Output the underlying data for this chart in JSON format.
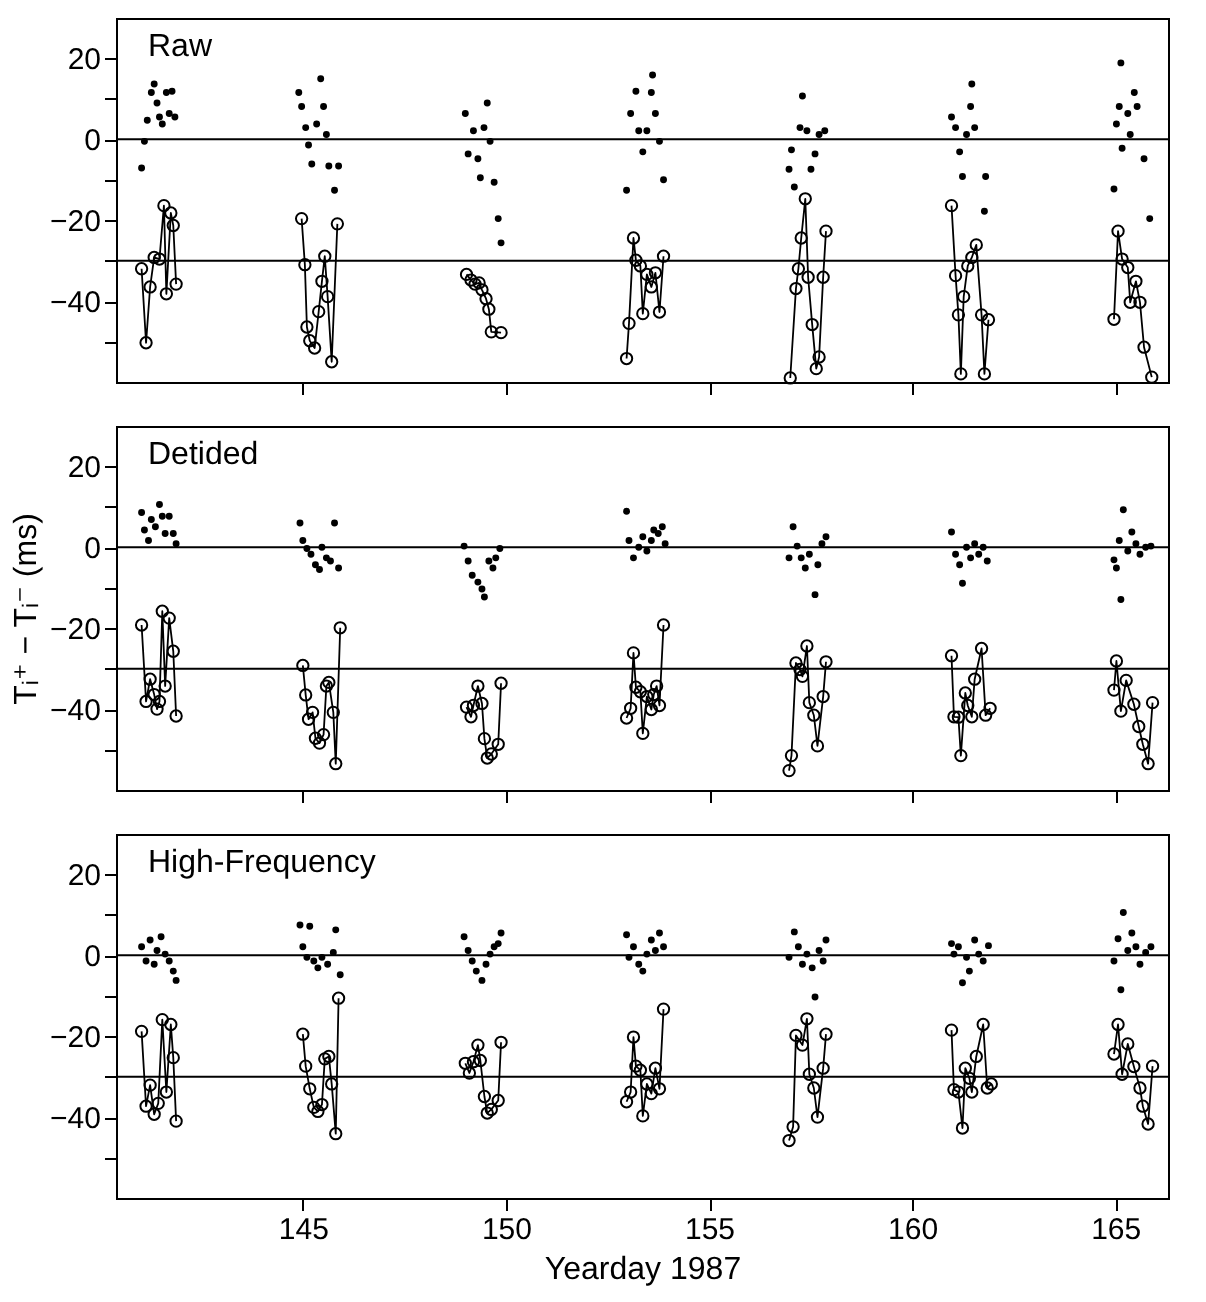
{
  "chart_data": [
    {
      "type": "scatter",
      "title": "Raw",
      "xlim": [
        140.4,
        166.3
      ],
      "ylim": [
        -60,
        30
      ],
      "xticks": [
        145,
        150,
        155,
        160,
        165
      ],
      "yticks": [
        {
          "value": -50,
          "label": null
        },
        -40,
        {
          "value": -30,
          "label": null
        },
        -20,
        {
          "value": -10,
          "label": null
        },
        0,
        {
          "value": 10,
          "label": null
        },
        20
      ],
      "tick_labels": "y",
      "ref_lines": [
        {
          "axis": "y",
          "value": 0
        },
        {
          "axis": "y",
          "value": -30
        }
      ],
      "series": [
        {
          "type": "scatter",
          "color": "#000000",
          "marker": "circle",
          "x": [
            141.03,
            141.1,
            141.17,
            141.27,
            141.34,
            141.41,
            141.47,
            141.54,
            141.64,
            141.71,
            141.78,
            141.85,
            144.9,
            144.97,
            145.07,
            145.14,
            145.22,
            145.34,
            145.44,
            145.51,
            145.58,
            145.64,
            145.78,
            145.88,
            149.0,
            149.07,
            149.2,
            149.31,
            149.37,
            149.46,
            149.54,
            149.61,
            149.71,
            149.81,
            149.88,
            152.97,
            153.07,
            153.2,
            153.27,
            153.37,
            153.47,
            153.58,
            153.61,
            153.68,
            153.78,
            153.88,
            156.97,
            157.03,
            157.1,
            157.24,
            157.3,
            157.41,
            157.51,
            157.61,
            157.71,
            157.85,
            160.97,
            161.07,
            161.17,
            161.24,
            161.34,
            161.44,
            161.47,
            161.54,
            161.78,
            161.81,
            164.97,
            165.03,
            165.1,
            165.14,
            165.17,
            165.31,
            165.37,
            165.47,
            165.54,
            165.71,
            165.85
          ],
          "values": [
            -7.1,
            -0.5,
            4.7,
            11.6,
            13.7,
            9,
            5.5,
            3.8,
            11.6,
            6.4,
            11.9,
            5.5,
            11.6,
            8.1,
            2.9,
            -1.4,
            -6.1,
            3.8,
            15,
            8.1,
            1.2,
            -6.6,
            -12.6,
            -6.6,
            6.4,
            -3.6,
            2.1,
            -4.8,
            -9.5,
            2.9,
            9,
            -0.5,
            -10.6,
            -19.6,
            -25.6,
            -12.6,
            6.4,
            11.9,
            2.1,
            -3.1,
            2.1,
            11.6,
            15.9,
            6.4,
            -0.5,
            -10,
            -7.4,
            -2.6,
            -11.8,
            2.9,
            10.7,
            2.1,
            -7.4,
            -3.6,
            1.2,
            2.1,
            5.5,
            2.9,
            -3.1,
            -9.2,
            1.2,
            8.1,
            13.7,
            2.9,
            -17.8,
            -9.2,
            -12.3,
            3.8,
            8.1,
            18.9,
            -2.2,
            6.4,
            1.2,
            11.6,
            8.1,
            -4.8,
            -19.6
          ]
        },
        {
          "type": "line",
          "color": "#000000",
          "marker": "circle",
          "x": [
            141.03,
            141.14,
            141.24,
            141.34,
            141.47,
            141.58,
            141.64,
            141.75,
            141.81,
            141.88,
            143.0,
            144.97,
            145.05,
            145.1,
            145.17,
            145.29,
            145.39,
            145.47,
            145.54,
            145.61,
            145.71,
            145.85,
            147.5,
            149.03,
            149.14,
            149.24,
            149.34,
            149.41,
            149.51,
            149.58,
            149.64,
            149.88,
            151.5,
            152.97,
            153.03,
            153.14,
            153.2,
            153.31,
            153.37,
            153.47,
            153.58,
            153.68,
            153.78,
            153.88,
            155.5,
            157.0,
            157.14,
            157.2,
            157.27,
            157.37,
            157.44,
            157.54,
            157.64,
            157.71,
            157.81,
            157.88,
            159.5,
            160.97,
            161.07,
            161.14,
            161.2,
            161.27,
            161.37,
            161.47,
            161.58,
            161.71,
            161.78,
            161.88,
            163.5,
            164.97,
            165.07,
            165.17,
            165.31,
            165.37,
            165.51,
            165.61,
            165.71,
            165.9
          ],
          "values": [
            -32,
            -50.3,
            -36.5,
            -29.2,
            -29.6,
            -16.4,
            -38.2,
            -18.2,
            -21.3,
            -35.8,
            null,
            -19.6,
            -31,
            -46.4,
            -49.8,
            -51.6,
            -42.6,
            -35.1,
            -28.9,
            -38.9,
            -55,
            -20.9,
            null,
            -33.4,
            -34.8,
            -35.8,
            -35.5,
            -37.2,
            -39.4,
            -42,
            -47.6,
            -47.8,
            null,
            -54.2,
            -45.5,
            -24.4,
            -29.9,
            -31.3,
            -43.1,
            -33.4,
            -36.5,
            -33,
            -42.7,
            -28.9,
            null,
            -59,
            -36.9,
            -32,
            -24.4,
            -14.7,
            -34.1,
            -45.8,
            -56.7,
            -53.8,
            -34.1,
            -22.7,
            null,
            -16.4,
            -33.7,
            -43.4,
            -58,
            -38.9,
            -31.3,
            -29.2,
            -26.1,
            -43.4,
            -58,
            -44.6,
            null,
            -44.5,
            -22.7,
            -29.6,
            -31.7,
            -40.3,
            -35.1,
            -40.3,
            -51.4,
            -58.8
          ]
        }
      ]
    },
    {
      "type": "scatter",
      "title": "Detided",
      "ylabel": "Tᵢ⁺ − Tᵢ⁻ (ms)",
      "xlim": [
        140.4,
        166.3
      ],
      "ylim": [
        -60,
        30
      ],
      "xticks": [
        145,
        150,
        155,
        160,
        165
      ],
      "yticks": [
        {
          "value": -50,
          "label": null
        },
        -40,
        {
          "value": -30,
          "label": null
        },
        -20,
        {
          "value": -10,
          "label": null
        },
        0,
        {
          "value": 10,
          "label": null
        },
        20
      ],
      "tick_labels": "y",
      "ref_lines": [
        {
          "axis": "y",
          "value": 0
        },
        {
          "axis": "y",
          "value": -30
        }
      ],
      "series": [
        {
          "type": "scatter",
          "color": "#000000",
          "marker": "circle",
          "x": [
            141.03,
            141.1,
            141.2,
            141.27,
            141.37,
            141.47,
            141.54,
            141.61,
            141.71,
            141.81,
            141.88,
            144.93,
            145.0,
            145.1,
            145.2,
            145.31,
            145.41,
            145.47,
            145.58,
            145.68,
            145.78,
            145.88,
            148.97,
            149.07,
            149.17,
            149.31,
            149.41,
            149.47,
            149.58,
            149.68,
            149.75,
            149.85,
            152.97,
            153.03,
            153.14,
            153.27,
            153.37,
            153.47,
            153.58,
            153.64,
            153.75,
            153.85,
            153.92,
            156.97,
            157.07,
            157.17,
            157.27,
            157.37,
            157.47,
            157.61,
            157.68,
            157.78,
            157.88,
            160.97,
            161.07,
            161.17,
            161.24,
            161.34,
            161.44,
            161.54,
            161.64,
            161.75,
            161.85,
            164.97,
            165.03,
            165.1,
            165.14,
            165.2,
            165.31,
            165.41,
            165.51,
            165.61,
            165.75,
            165.88
          ],
          "values": [
            8.6,
            4.3,
            1.7,
            6.9,
            5.1,
            10.6,
            7.7,
            3.4,
            7.7,
            3.4,
            0.9,
            6,
            1.7,
            -0.3,
            -1.7,
            -4.3,
            -5.5,
            0,
            -2.6,
            -3.4,
            6,
            -5.1,
            0.3,
            -3.4,
            -6.9,
            -8.6,
            -10.3,
            -12.3,
            -3.4,
            -5.1,
            -2.6,
            -0.3,
            8.9,
            1.7,
            -2.6,
            0,
            2.6,
            -0.9,
            1.7,
            4.3,
            3.4,
            5.1,
            0.9,
            -2.6,
            5.1,
            0.3,
            -2.6,
            -5.1,
            -1.7,
            -11.7,
            -4.3,
            0.9,
            2.6,
            3.8,
            -1.7,
            -4.3,
            -8.9,
            0,
            -2.6,
            0.9,
            -1.7,
            0,
            -3.4,
            -3.1,
            -5.1,
            1.7,
            -12.9,
            9.3,
            -0.9,
            3.8,
            0.9,
            -1.7,
            0,
            0.3
          ]
        },
        {
          "type": "line",
          "color": "#000000",
          "marker": "circle",
          "x": [
            141.03,
            141.14,
            141.24,
            141.34,
            141.41,
            141.47,
            141.54,
            141.61,
            141.71,
            141.81,
            141.88,
            143.0,
            145.0,
            145.07,
            145.14,
            145.24,
            145.31,
            145.41,
            145.51,
            145.58,
            145.64,
            145.75,
            145.81,
            145.92,
            147.5,
            149.03,
            149.14,
            149.2,
            149.31,
            149.41,
            149.47,
            149.54,
            149.64,
            149.81,
            149.88,
            151.5,
            152.97,
            153.07,
            153.14,
            153.2,
            153.31,
            153.37,
            153.47,
            153.58,
            153.64,
            153.71,
            153.78,
            153.88,
            155.5,
            156.97,
            157.03,
            157.14,
            157.24,
            157.3,
            157.41,
            157.47,
            157.58,
            157.67,
            157.81,
            157.88,
            159.5,
            160.97,
            161.03,
            161.14,
            161.2,
            161.31,
            161.37,
            161.47,
            161.54,
            161.71,
            161.81,
            161.92,
            163.5,
            164.97,
            165.03,
            165.14,
            165.27,
            165.46,
            165.58,
            165.68,
            165.81,
            165.92
          ],
          "values": [
            -19.2,
            -38.1,
            -32.6,
            -36.4,
            -40,
            -38.1,
            -15.8,
            -34.3,
            -17.5,
            -25.7,
            -41.7,
            null,
            -29.2,
            -36.5,
            -42.5,
            -40.8,
            -47.2,
            -48.4,
            -46.3,
            -34.3,
            -33.4,
            -40.8,
            -53.5,
            -19.9,
            null,
            -39.5,
            -41.9,
            -39.1,
            -34.3,
            -38.6,
            -47.3,
            -52.1,
            -51.1,
            -48.7,
            -33.6,
            null,
            -42.2,
            -39.8,
            -26.1,
            -34.6,
            -35.7,
            -46,
            -36.9,
            -40.1,
            -36.4,
            -34.3,
            -39.1,
            -19.2,
            null,
            -55.2,
            -51.5,
            -28.6,
            -30.2,
            -31.9,
            -24.4,
            -38.4,
            -41.5,
            -49.1,
            -36.9,
            -28.3,
            null,
            -26.8,
            -41.9,
            -42,
            -51.5,
            -36,
            -39.1,
            -41.9,
            -32.6,
            -25,
            -41.5,
            -39.8,
            null,
            -35.3,
            -28.1,
            -40.5,
            -32.9,
            -38.8,
            -44.3,
            -48.7,
            -53.5,
            -38.4
          ]
        }
      ]
    },
    {
      "type": "scatter",
      "title": "High-Frequency",
      "xlabel": "Yearday 1987",
      "xlim": [
        140.4,
        166.3
      ],
      "ylim": [
        -60,
        30
      ],
      "xticks": [
        145,
        150,
        155,
        160,
        165
      ],
      "yticks": [
        {
          "value": -50,
          "label": null
        },
        -40,
        {
          "value": -30,
          "label": null
        },
        -20,
        {
          "value": -10,
          "label": null
        },
        0,
        {
          "value": 10,
          "label": null
        },
        20
      ],
      "ref_lines": [
        {
          "axis": "y",
          "value": 0
        },
        {
          "axis": "y",
          "value": -30
        }
      ],
      "series": [
        {
          "type": "scatter",
          "color": "#000000",
          "marker": "circle",
          "x": [
            141.03,
            141.14,
            141.24,
            141.34,
            141.41,
            141.51,
            141.61,
            141.71,
            141.81,
            141.88,
            144.93,
            145.0,
            145.1,
            145.17,
            145.27,
            145.37,
            145.47,
            145.61,
            145.75,
            145.81,
            145.92,
            148.97,
            149.07,
            149.17,
            149.27,
            149.41,
            149.51,
            149.61,
            149.71,
            149.81,
            149.88,
            152.97,
            153.03,
            153.14,
            153.27,
            153.37,
            153.47,
            153.58,
            153.68,
            153.78,
            153.88,
            156.97,
            157.1,
            157.2,
            157.3,
            157.41,
            157.54,
            157.61,
            157.71,
            157.81,
            157.88,
            160.97,
            161.03,
            161.14,
            161.24,
            161.34,
            161.41,
            161.54,
            161.64,
            161.75,
            161.88,
            164.97,
            165.07,
            165.14,
            165.2,
            165.31,
            165.41,
            165.51,
            165.61,
            165.75,
            165.88
          ],
          "values": [
            2.1,
            -1.4,
            3.8,
            -2.2,
            1.2,
            4.6,
            0.3,
            -1.4,
            -3.9,
            -6.2,
            7.5,
            2.1,
            -0.5,
            7.2,
            -1.4,
            -3.1,
            -0.5,
            -2.2,
            0.7,
            6.3,
            -4.8,
            4.6,
            1.2,
            -1.4,
            -3.9,
            -6.2,
            -2.2,
            0.3,
            2.1,
            2.9,
            5.5,
            5.1,
            -0.5,
            2.1,
            -2.2,
            -3.9,
            0.3,
            3.8,
            1.2,
            5.5,
            2.1,
            -0.5,
            5.8,
            2.1,
            -2.2,
            0.3,
            -3.1,
            -10.3,
            1.2,
            -1.4,
            3.8,
            2.9,
            0.3,
            2.1,
            -6.8,
            -0.5,
            -3.9,
            3.8,
            0.3,
            -1.4,
            2.4,
            -1.4,
            4.1,
            -8.5,
            10.6,
            1.2,
            5.5,
            2.1,
            -2.2,
            0.7,
            2.1
          ]
        },
        {
          "type": "line",
          "color": "#000000",
          "marker": "circle",
          "x": [
            141.03,
            141.14,
            141.24,
            141.34,
            141.44,
            141.54,
            141.64,
            141.75,
            141.81,
            141.88,
            143.0,
            145.0,
            145.07,
            145.17,
            145.27,
            145.37,
            145.47,
            145.54,
            145.64,
            145.71,
            145.81,
            145.88,
            147.5,
            149.0,
            149.1,
            149.2,
            149.31,
            149.37,
            149.47,
            149.54,
            149.64,
            149.81,
            149.88,
            151.5,
            152.97,
            153.07,
            153.14,
            153.2,
            153.31,
            153.37,
            153.47,
            153.58,
            153.68,
            153.78,
            153.88,
            155.5,
            156.97,
            157.07,
            157.14,
            157.3,
            157.41,
            157.47,
            157.58,
            157.67,
            157.81,
            157.88,
            159.5,
            160.97,
            161.03,
            161.14,
            161.24,
            161.31,
            161.41,
            161.47,
            161.58,
            161.75,
            161.85,
            161.95,
            163.5,
            164.97,
            165.07,
            165.17,
            165.31,
            165.46,
            165.61,
            165.68,
            165.81,
            165.92
          ],
          "values": [
            -18.8,
            -37.3,
            -32.1,
            -39.3,
            -36.6,
            -15.9,
            -33.8,
            -17.1,
            -25.3,
            -41,
            null,
            -19.5,
            -27.4,
            -33,
            -37.6,
            -38.6,
            -36.9,
            -25.6,
            -25,
            -31.8,
            -44.1,
            -10.6,
            null,
            -26.7,
            -29.1,
            -26.3,
            -22.2,
            -26,
            -34.9,
            -39,
            -38.1,
            -35.9,
            -21.5,
            null,
            -36.2,
            -33.8,
            -20.2,
            -27.4,
            -28.4,
            -39.7,
            -31.8,
            -34.2,
            -27.9,
            -33,
            -13.3,
            null,
            -45.8,
            -42.4,
            -19.8,
            -22.2,
            -15.7,
            -29.4,
            -32.8,
            -40,
            -27.9,
            -19.5,
            null,
            -18.5,
            -33.2,
            -33.8,
            -42.7,
            -27.9,
            -30.4,
            -33.8,
            -25,
            -17.1,
            -32.8,
            -31.8,
            null,
            -24.4,
            -17.1,
            -29.4,
            -21.9,
            -27.5,
            -32.8,
            -37.3,
            -41.7,
            -27.4
          ]
        }
      ]
    }
  ]
}
